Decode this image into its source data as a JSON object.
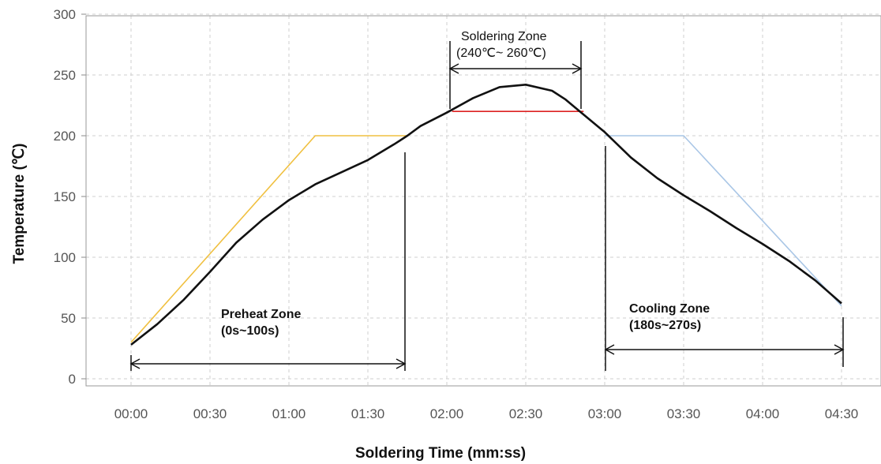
{
  "chart_data": {
    "type": "line",
    "title": "",
    "xlabel": "Soldering Time (mm:ss)",
    "ylabel": "Temperature (℃)",
    "x_ticks": [
      {
        "t": 0,
        "label": "00:00"
      },
      {
        "t": 30,
        "label": "00:30"
      },
      {
        "t": 60,
        "label": "01:00"
      },
      {
        "t": 90,
        "label": "01:30"
      },
      {
        "t": 120,
        "label": "02:00"
      },
      {
        "t": 150,
        "label": "02:30"
      },
      {
        "t": 180,
        "label": "03:00"
      },
      {
        "t": 210,
        "label": "03:30"
      },
      {
        "t": 240,
        "label": "04:00"
      },
      {
        "t": 270,
        "label": "04:30"
      }
    ],
    "y_ticks": [
      "0",
      "50",
      "100",
      "150",
      "200",
      "250",
      "300"
    ],
    "xlim": [
      -10,
      280
    ],
    "ylim": [
      0,
      300
    ],
    "grid": true,
    "series": [
      {
        "color": "#f0c040",
        "x": [
          0,
          70,
          105
        ],
        "y": [
          30,
          200,
          200
        ]
      },
      {
        "color": "#dd2222",
        "x": [
          122,
          172
        ],
        "y": [
          220,
          220
        ]
      },
      {
        "color": "#a9c6e6",
        "x": [
          180,
          210,
          270
        ],
        "y": [
          200,
          200,
          60
        ]
      },
      {
        "color": "#111111",
        "x": [
          0,
          10,
          20,
          30,
          40,
          50,
          60,
          70,
          80,
          90,
          100,
          105,
          110,
          120,
          130,
          140,
          150,
          160,
          165,
          170,
          180,
          190,
          200,
          210,
          220,
          230,
          240,
          250,
          260,
          270
        ],
        "y": [
          28,
          45,
          65,
          88,
          112,
          131,
          147,
          160,
          170,
          180,
          193,
          200,
          208,
          219,
          231,
          240,
          242,
          237,
          230,
          221,
          203,
          182,
          165,
          151,
          138,
          124,
          111,
          97,
          81,
          62
        ]
      }
    ],
    "annotations": {
      "preheat": {
        "title": "Preheat Zone",
        "range": "(0s~100s)"
      },
      "soldering": {
        "title": "Soldering Zone",
        "range": "(240℃~ 260℃)"
      },
      "cooling": {
        "title": "Cooling Zone",
        "range": "(180s~270s)"
      }
    }
  }
}
